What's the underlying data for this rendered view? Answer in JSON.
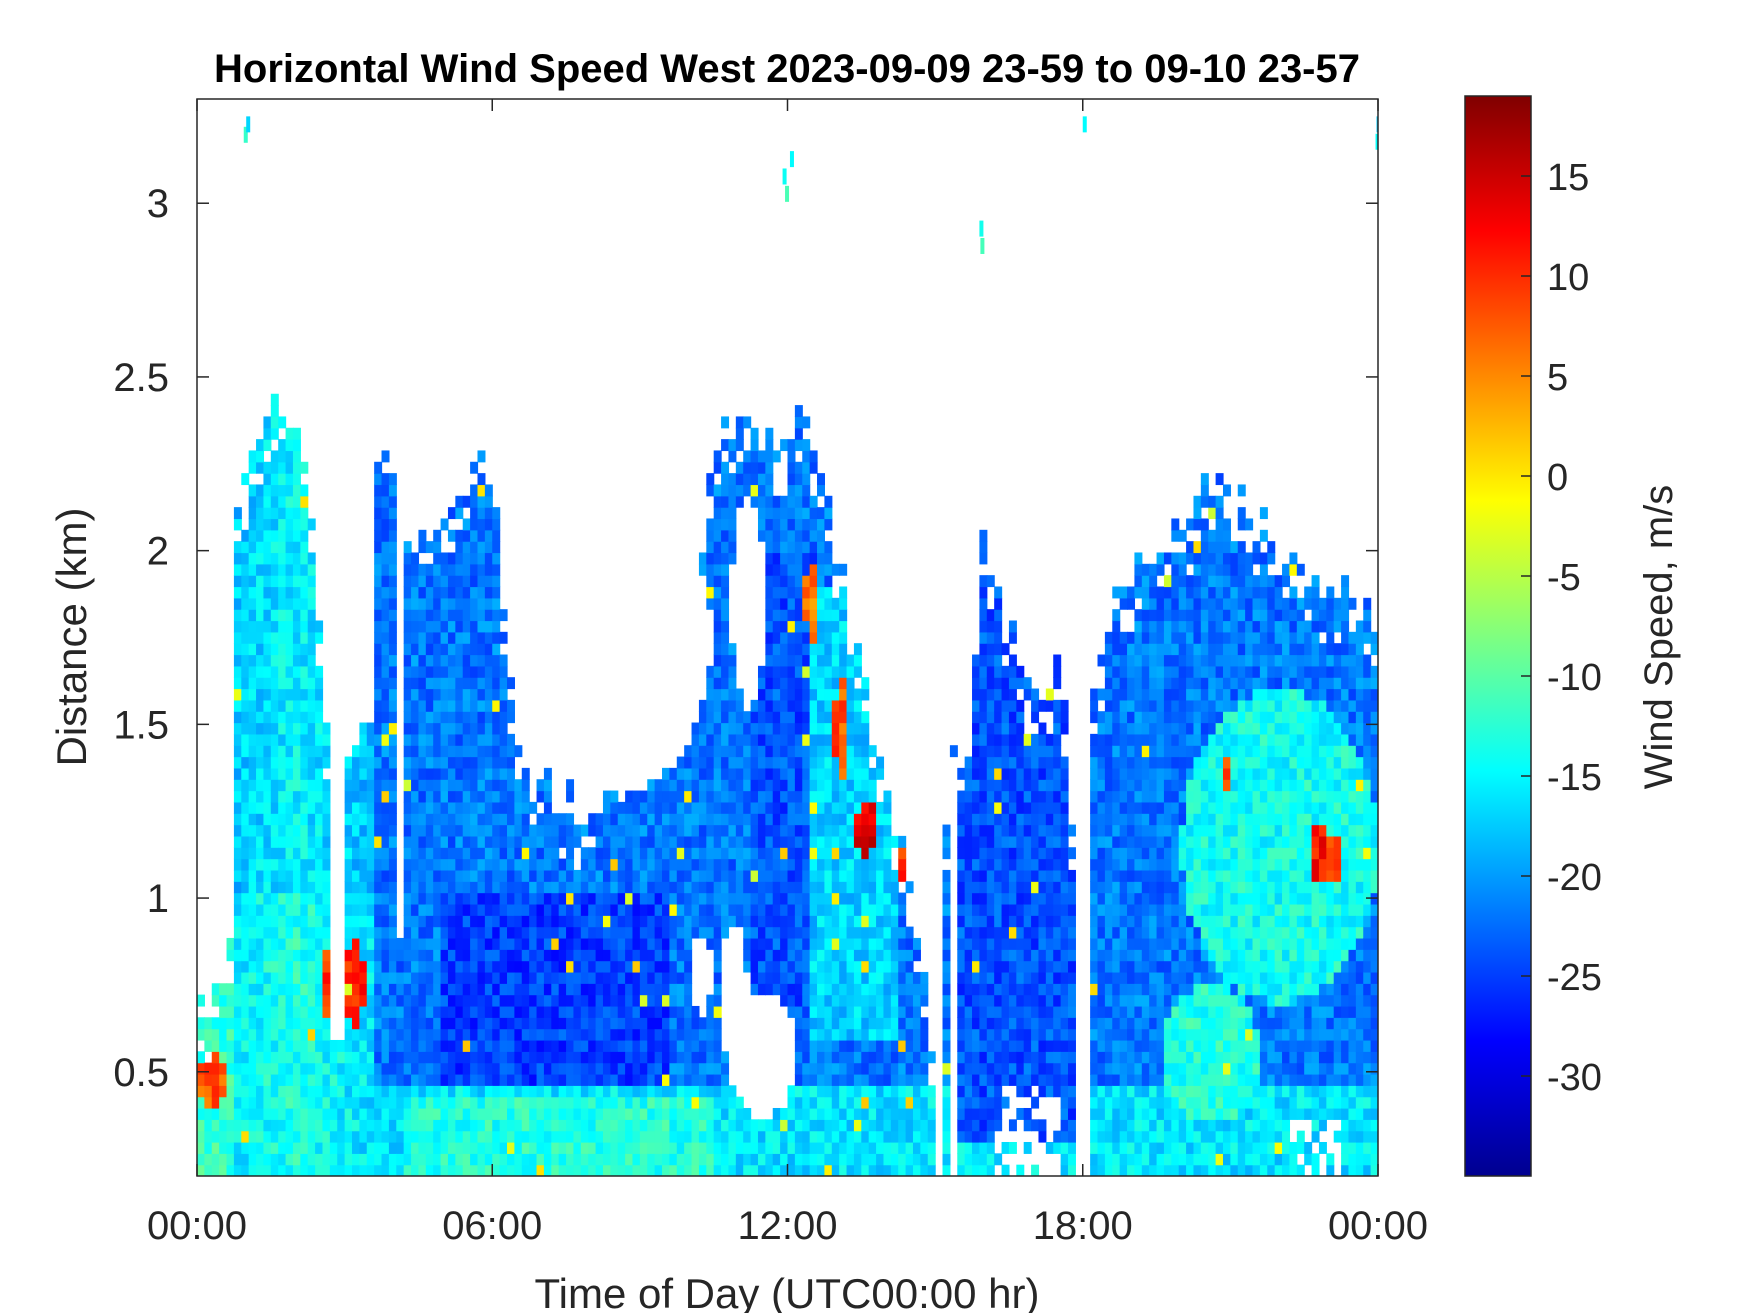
{
  "chart_data": {
    "type": "heatmap",
    "title": "Horizontal Wind Speed West 2023-09-09 23-59 to 09-10 23-57",
    "xlabel": "Time of Day (UTC00:00 hr)",
    "ylabel": "Distance (km)",
    "colorbar_label": "Wind Speed, m/s",
    "colormap": "jet",
    "x_unit": "hours",
    "xlim": [
      0,
      24
    ],
    "ylim": [
      0.2,
      3.3
    ],
    "clim": [
      -35,
      19
    ],
    "x_ticks": [
      0,
      6,
      12,
      18,
      24
    ],
    "x_tick_labels": [
      "00:00",
      "06:00",
      "12:00",
      "18:00",
      "00:00"
    ],
    "y_ticks": [
      0.5,
      1,
      1.5,
      2,
      2.5,
      3
    ],
    "y_tick_labels": [
      "0.5",
      "1",
      "1.5",
      "2",
      "2.5",
      "3"
    ],
    "colorbar_ticks": [
      15,
      10,
      5,
      0,
      -5,
      -10,
      -15,
      -20,
      -25,
      -30
    ],
    "colorbar_tick_labels": [
      "15",
      "10",
      "5",
      "0",
      "-5",
      "-10",
      "-15",
      "-20",
      "-25",
      "-30"
    ],
    "data_top_profile": {
      "description_units": "hour -> top of valid data (km)",
      "hours": [
        0.0,
        0.3,
        0.7,
        0.75,
        1.2,
        1.5,
        1.8,
        2.0,
        2.3,
        2.5,
        2.75,
        3.2,
        3.6,
        3.7,
        4.0,
        4.2,
        4.4,
        4.8,
        5.2,
        5.6,
        6.0,
        6.3,
        6.6,
        7.0,
        7.5,
        8.0,
        8.5,
        9.0,
        9.5,
        10.0,
        10.5,
        11.0,
        11.5,
        12.0,
        12.3,
        12.6,
        13.0,
        13.3,
        13.7,
        14.0,
        14.4,
        14.7,
        15.0,
        15.3,
        15.7,
        16.0,
        16.4,
        16.8,
        17.3,
        17.6,
        17.8,
        18.2,
        18.6,
        19.0,
        19.5,
        20.0,
        20.5,
        21.0,
        21.5,
        22.0,
        22.5,
        23.0,
        23.5,
        24.0
      ],
      "top_km": [
        0.65,
        0.75,
        0.85,
        2.2,
        2.25,
        2.45,
        2.5,
        2.45,
        2.2,
        1.8,
        1.1,
        1.5,
        2.3,
        2.25,
        2.2,
        2.0,
        2.05,
        2.1,
        2.15,
        2.2,
        2.3,
        1.65,
        1.4,
        1.35,
        1.3,
        1.25,
        1.4,
        1.6,
        1.8,
        2.1,
        2.3,
        2.4,
        2.35,
        2.3,
        2.5,
        2.3,
        2.0,
        1.8,
        1.5,
        1.3,
        1.2,
        0.8,
        0.5,
        1.5,
        1.4,
        2.1,
        1.8,
        1.65,
        1.65,
        1.65,
        1.2,
        1.55,
        1.85,
        1.95,
        2.05,
        2.1,
        2.2,
        2.15,
        2.1,
        2.0,
        1.95,
        1.9,
        1.85,
        1.85
      ]
    },
    "regions": [
      {
        "feature": "weaker westward wind, light blue to cyan",
        "hours": [
          0,
          3.6
        ],
        "km": [
          0.2,
          2.5
        ],
        "value_ms": -14
      },
      {
        "feature": "weaker westward wind near ground",
        "hours": [
          4.5,
          10.5
        ],
        "km": [
          0.2,
          0.5
        ],
        "value_ms": -15
      },
      {
        "feature": "strong westward wind, deep blue",
        "hours": [
          5.0,
          10.0
        ],
        "km": [
          0.45,
          1.0
        ],
        "value_ms": -25
      },
      {
        "feature": "strong westward wind, deep blue",
        "hours": [
          15.5,
          18.0
        ],
        "km": [
          0.2,
          2.0
        ],
        "value_ms": -24
      },
      {
        "feature": "strong westward wind, deep blue",
        "hours": [
          11.3,
          12.7
        ],
        "km": [
          0.6,
          2.0
        ],
        "value_ms": -24
      },
      {
        "feature": "weaker westward wind, cyan",
        "hours": [
          20.3,
          24.0
        ],
        "km": [
          0.6,
          1.5
        ],
        "value_ms": -15
      },
      {
        "feature": "near-zero to eastward wind, red patches",
        "hours": [
          13.2,
          13.9
        ],
        "km": [
          1.15,
          1.6
        ],
        "value_ms": 12
      },
      {
        "feature": "near-zero to eastward wind, red patches",
        "hours": [
          22.7,
          23.3
        ],
        "km": [
          1.05,
          1.2
        ],
        "value_ms": 12
      },
      {
        "feature": "near-zero to eastward wind, red patches",
        "hours": [
          2.4,
          3.5
        ],
        "km": [
          0.6,
          0.95
        ],
        "value_ms": 10
      },
      {
        "feature": "near-zero to eastward wind, red patches",
        "hours": [
          0.0,
          0.7
        ],
        "km": [
          0.4,
          0.6
        ],
        "value_ms": 10
      }
    ]
  }
}
